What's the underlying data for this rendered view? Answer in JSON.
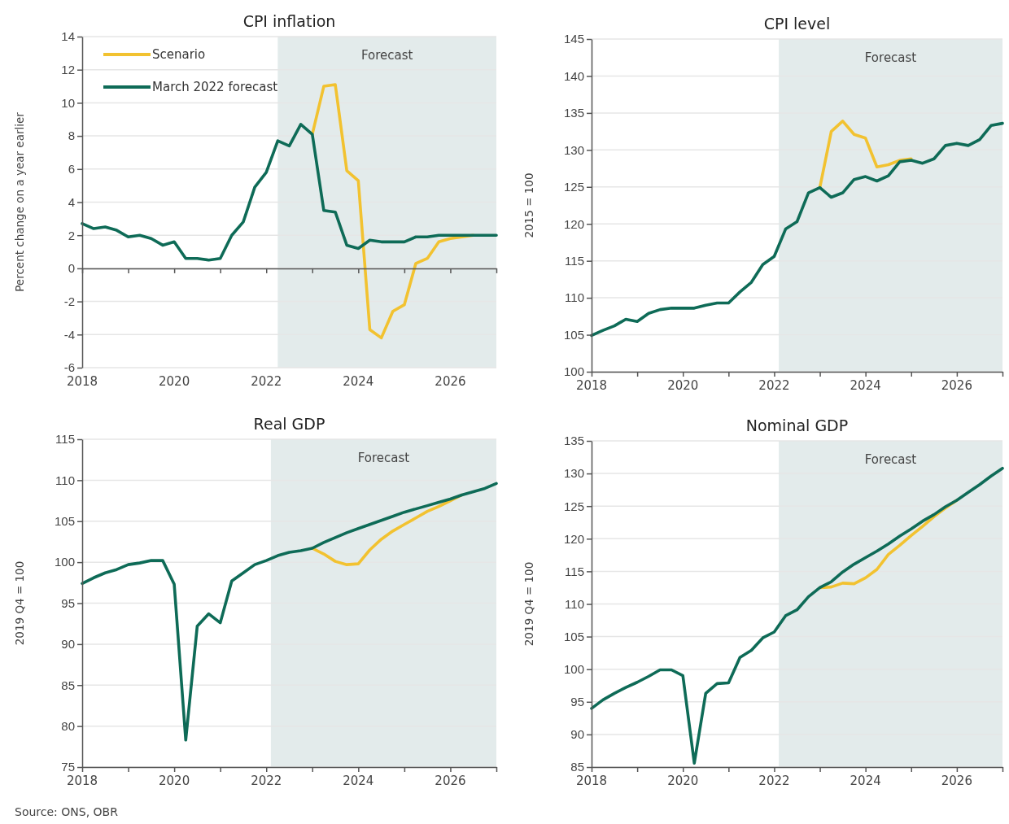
{
  "chart_data": [
    {
      "type": "line",
      "title": "CPI inflation",
      "ylabel": "Percent change on a year earlier",
      "x": [
        2018.0,
        2018.25,
        2018.5,
        2018.75,
        2019.0,
        2019.25,
        2019.5,
        2019.75,
        2020.0,
        2020.25,
        2020.5,
        2020.75,
        2021.0,
        2021.25,
        2021.5,
        2021.75,
        2022.0,
        2022.25,
        2022.5,
        2022.75,
        2023.0,
        2023.25,
        2023.5,
        2023.75,
        2024.0,
        2024.25,
        2024.5,
        2024.75,
        2025.0,
        2025.25,
        2025.5,
        2025.75,
        2026.0,
        2026.25,
        2026.5,
        2026.75,
        2027.0
      ],
      "series": [
        {
          "name": "Scenario",
          "color": "#f2c230",
          "x": [
            2023.0,
            2023.25,
            2023.5,
            2023.75,
            2024.0,
            2024.25,
            2024.5,
            2024.75,
            2025.0,
            2025.25,
            2025.5,
            2025.75,
            2026.0,
            2026.25,
            2026.5
          ],
          "values": [
            8.1,
            11.0,
            11.1,
            5.9,
            5.3,
            -3.7,
            -4.2,
            -2.6,
            -2.2,
            0.3,
            0.6,
            1.6,
            1.8,
            1.9,
            2.0
          ]
        },
        {
          "name": "March 2022 forecast",
          "color": "#0e6b57",
          "values": [
            2.7,
            2.4,
            2.5,
            2.3,
            1.9,
            2.0,
            1.8,
            1.4,
            1.6,
            0.6,
            0.6,
            0.5,
            0.6,
            2.0,
            2.8,
            4.9,
            5.8,
            7.7,
            7.4,
            8.7,
            8.1,
            3.5,
            3.4,
            1.4,
            1.2,
            1.7,
            1.6,
            1.6,
            1.6,
            1.9,
            1.9,
            2.0,
            2.0,
            2.0,
            2.0,
            2.0,
            2.0
          ]
        }
      ],
      "xlim": [
        2018,
        2027
      ],
      "xticks": [
        2018,
        {
          "value": 2019,
          "label": null
        },
        2020,
        {
          "value": 2021,
          "label": null
        },
        2022,
        {
          "value": 2023,
          "label": null
        },
        2024,
        {
          "value": 2025,
          "label": null
        },
        2026,
        {
          "value": 2027,
          "label": null
        }
      ],
      "ylim": [
        -6,
        14
      ],
      "yticks": [
        -6,
        -4,
        -2,
        0,
        2,
        4,
        6,
        8,
        10,
        12,
        14
      ],
      "bands": [
        {
          "axis": "x",
          "from": 2022.25,
          "to": 2027,
          "label": "Forecast",
          "color": "#e3ebeb"
        }
      ],
      "grid": "y",
      "legend": "top left",
      "line_style": "solid",
      "marker": "none"
    },
    {
      "type": "line",
      "title": "CPI level",
      "ylabel": "2015 = 100",
      "x": [
        2018.0,
        2018.25,
        2018.5,
        2018.75,
        2019.0,
        2019.25,
        2019.5,
        2019.75,
        2020.0,
        2020.25,
        2020.5,
        2020.75,
        2021.0,
        2021.25,
        2021.5,
        2021.75,
        2022.0,
        2022.25,
        2022.5,
        2022.75,
        2023.0,
        2023.25,
        2023.5,
        2023.75,
        2024.0,
        2024.25,
        2024.5,
        2024.75,
        2025.0,
        2025.25,
        2025.5,
        2025.75,
        2026.0,
        2026.25,
        2026.5,
        2026.75,
        2027.0
      ],
      "series": [
        {
          "color": "#f2c230",
          "x": [
            2023.0,
            2023.25,
            2023.5,
            2023.75,
            2024.0,
            2024.25,
            2024.5,
            2024.75,
            2025.0
          ],
          "values": [
            124.9,
            132.5,
            133.9,
            132.1,
            131.6,
            127.7,
            128.0,
            128.6,
            128.8
          ]
        },
        {
          "color": "#0e6b57",
          "values": [
            104.9,
            105.6,
            106.2,
            107.1,
            106.8,
            107.9,
            108.4,
            108.6,
            108.6,
            108.6,
            109.0,
            109.3,
            109.3,
            110.8,
            112.1,
            114.5,
            115.6,
            119.3,
            120.3,
            124.2,
            124.9,
            123.6,
            124.2,
            126.0,
            126.4,
            125.8,
            126.5,
            128.4,
            128.6,
            128.2,
            128.8,
            130.6,
            130.9,
            130.6,
            131.4,
            133.3,
            133.6
          ]
        }
      ],
      "xlim": [
        2018,
        2027
      ],
      "xticks": [
        2018,
        {
          "value": 2019,
          "label": null
        },
        2020,
        {
          "value": 2021,
          "label": null
        },
        2022,
        {
          "value": 2023,
          "label": null
        },
        2024,
        {
          "value": 2025,
          "label": null
        },
        2026,
        {
          "value": 2027,
          "label": null
        }
      ],
      "ylim": [
        100,
        145
      ],
      "yticks": [
        100,
        105,
        110,
        115,
        120,
        125,
        130,
        135,
        140,
        145
      ],
      "bands": [
        {
          "axis": "x",
          "from": 2022.1,
          "to": 2027,
          "label": "Forecast",
          "color": "#e3ebeb"
        }
      ],
      "grid": "y",
      "line_style": "solid",
      "marker": "none"
    },
    {
      "type": "line",
      "title": "Real GDP",
      "ylabel": "2019 Q4 = 100",
      "annotations": [
        "Source: ONS, OBR"
      ],
      "x": [
        2018.0,
        2018.25,
        2018.5,
        2018.75,
        2019.0,
        2019.25,
        2019.5,
        2019.75,
        2020.0,
        2020.25,
        2020.5,
        2020.75,
        2021.0,
        2021.25,
        2021.5,
        2021.75,
        2022.0,
        2022.25,
        2022.5,
        2022.75,
        2023.0,
        2023.25,
        2023.5,
        2023.75,
        2024.0,
        2024.25,
        2024.5,
        2024.75,
        2025.0,
        2025.25,
        2025.5,
        2025.75,
        2026.0,
        2026.25,
        2026.5,
        2026.75,
        2027.0
      ],
      "series": [
        {
          "color": "#f2c230",
          "x": [
            2023.0,
            2023.25,
            2023.5,
            2023.75,
            2024.0,
            2024.25,
            2024.5,
            2024.75,
            2025.0,
            2025.25,
            2025.5,
            2025.75,
            2026.0,
            2026.25
          ],
          "values": [
            101.7,
            101.0,
            100.1,
            99.7,
            99.8,
            101.5,
            102.8,
            103.8,
            104.6,
            105.4,
            106.2,
            106.8,
            107.5,
            108.2
          ]
        },
        {
          "color": "#0e6b57",
          "values": [
            97.4,
            98.1,
            98.7,
            99.1,
            99.7,
            99.9,
            100.2,
            100.2,
            97.3,
            78.3,
            92.2,
            93.7,
            92.6,
            97.7,
            98.7,
            99.7,
            100.2,
            100.8,
            101.2,
            101.4,
            101.7,
            102.4,
            103.0,
            103.6,
            104.1,
            104.6,
            105.1,
            105.6,
            106.1,
            106.5,
            106.9,
            107.3,
            107.7,
            108.2,
            108.6,
            109.0,
            109.6
          ]
        }
      ],
      "xlim": [
        2018,
        2027
      ],
      "xticks": [
        2018,
        {
          "value": 2019,
          "label": null
        },
        2020,
        {
          "value": 2021,
          "label": null
        },
        2022,
        {
          "value": 2023,
          "label": null
        },
        2024,
        {
          "value": 2025,
          "label": null
        },
        2026,
        {
          "value": 2027,
          "label": null
        }
      ],
      "ylim": [
        75,
        115
      ],
      "yticks": [
        75,
        80,
        85,
        90,
        95,
        100,
        105,
        110,
        115
      ],
      "bands": [
        {
          "axis": "x",
          "from": 2022.1,
          "to": 2027,
          "label": "Forecast",
          "color": "#e3ebeb"
        }
      ],
      "grid": "y",
      "line_style": "solid",
      "marker": "none"
    },
    {
      "type": "line",
      "title": "Nominal GDP",
      "ylabel": "2019 Q4 = 100",
      "x": [
        2018.0,
        2018.25,
        2018.5,
        2018.75,
        2019.0,
        2019.25,
        2019.5,
        2019.75,
        2020.0,
        2020.25,
        2020.5,
        2020.75,
        2021.0,
        2021.25,
        2021.5,
        2021.75,
        2022.0,
        2022.25,
        2022.5,
        2022.75,
        2023.0,
        2023.25,
        2023.5,
        2023.75,
        2024.0,
        2024.25,
        2024.5,
        2024.75,
        2025.0,
        2025.25,
        2025.5,
        2025.75,
        2026.0,
        2026.25,
        2026.5,
        2026.75,
        2027.0
      ],
      "series": [
        {
          "color": "#f2c230",
          "x": [
            2023.0,
            2023.25,
            2023.5,
            2023.75,
            2024.0,
            2024.25,
            2024.5,
            2024.75,
            2025.0,
            2025.25,
            2025.5,
            2025.75,
            2026.0
          ],
          "values": [
            112.5,
            112.6,
            113.2,
            113.1,
            114.0,
            115.3,
            117.6,
            119.0,
            120.5,
            121.9,
            123.4,
            124.7,
            125.9
          ]
        },
        {
          "color": "#0e6b57",
          "values": [
            94.0,
            95.3,
            96.3,
            97.2,
            98.0,
            98.9,
            99.9,
            99.9,
            99.0,
            85.6,
            96.3,
            97.8,
            97.9,
            101.8,
            102.9,
            104.8,
            105.7,
            108.2,
            109.1,
            111.1,
            112.5,
            113.4,
            114.9,
            116.1,
            117.1,
            118.1,
            119.2,
            120.4,
            121.5,
            122.7,
            123.7,
            124.9,
            125.9,
            127.1,
            128.3,
            129.6,
            130.8
          ]
        }
      ],
      "xlim": [
        2018,
        2027
      ],
      "xticks": [
        2018,
        {
          "value": 2019,
          "label": null
        },
        2020,
        {
          "value": 2021,
          "label": null
        },
        2022,
        {
          "value": 2023,
          "label": null
        },
        2024,
        {
          "value": 2025,
          "label": null
        },
        2026,
        {
          "value": 2027,
          "label": null
        }
      ],
      "ylim": [
        85,
        135
      ],
      "yticks": [
        85,
        90,
        95,
        100,
        105,
        110,
        115,
        120,
        125,
        130,
        135
      ],
      "bands": [
        {
          "axis": "x",
          "from": 2022.1,
          "to": 2027,
          "label": "Forecast",
          "color": "#e3ebeb"
        }
      ],
      "grid": "y",
      "line_style": "solid",
      "marker": "none"
    }
  ]
}
